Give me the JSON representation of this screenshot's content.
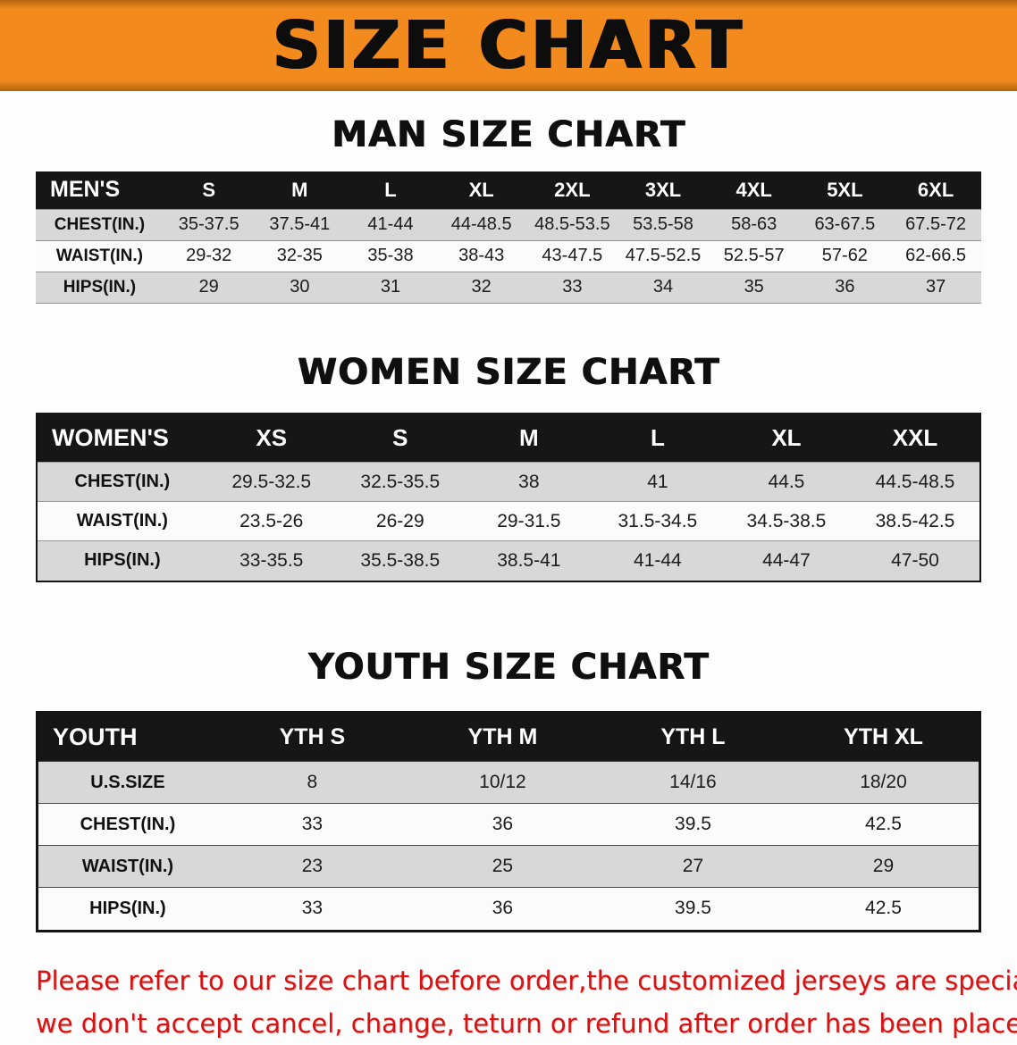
{
  "banner": {
    "title": "SIZE CHART"
  },
  "colors": {
    "banner_bg": "#f28a1e",
    "header_band": "#161616",
    "row_stripe": "#d8d8d8",
    "disclaimer_red": "#d61212"
  },
  "men": {
    "heading": "MAN SIZE CHART",
    "table": {
      "header": [
        "MEN'S",
        "S",
        "M",
        "L",
        "XL",
        "2XL",
        "3XL",
        "4XL",
        "5XL",
        "6XL"
      ],
      "rows": [
        {
          "label": "CHEST(IN.)",
          "values": [
            "35-37.5",
            "37.5-41",
            "41-44",
            "44-48.5",
            "48.5-53.5",
            "53.5-58",
            "58-63",
            "63-67.5",
            "67.5-72"
          ]
        },
        {
          "label": "WAIST(IN.)",
          "values": [
            "29-32",
            "32-35",
            "35-38",
            "38-43",
            "43-47.5",
            "47.5-52.5",
            "52.5-57",
            "57-62",
            "62-66.5"
          ]
        },
        {
          "label": "HIPS(IN.)",
          "values": [
            "29",
            "30",
            "31",
            "32",
            "33",
            "34",
            "35",
            "36",
            "37"
          ]
        }
      ]
    }
  },
  "women": {
    "heading": "WOMEN SIZE CHART",
    "table": {
      "header": [
        "WOMEN'S",
        "XS",
        "S",
        "M",
        "L",
        "XL",
        "XXL"
      ],
      "rows": [
        {
          "label": "CHEST(IN.)",
          "values": [
            "29.5-32.5",
            "32.5-35.5",
            "38",
            "41",
            "44.5",
            "44.5-48.5"
          ]
        },
        {
          "label": "WAIST(IN.)",
          "values": [
            "23.5-26",
            "26-29",
            "29-31.5",
            "31.5-34.5",
            "34.5-38.5",
            "38.5-42.5"
          ]
        },
        {
          "label": "HIPS(IN.)",
          "values": [
            "33-35.5",
            "35.5-38.5",
            "38.5-41",
            "41-44",
            "44-47",
            "47-50"
          ]
        }
      ]
    }
  },
  "youth": {
    "heading": "YOUTH SIZE CHART",
    "table": {
      "header": [
        "YOUTH",
        "YTH S",
        "YTH M",
        "YTH L",
        "YTH XL"
      ],
      "rows": [
        {
          "label": "U.S.SIZE",
          "values": [
            "8",
            "10/12",
            "14/16",
            "18/20"
          ]
        },
        {
          "label": "CHEST(IN.)",
          "values": [
            "33",
            "36",
            "39.5",
            "42.5"
          ]
        },
        {
          "label": "WAIST(IN.)",
          "values": [
            "23",
            "25",
            "27",
            "29"
          ]
        },
        {
          "label": "HIPS(IN.)",
          "values": [
            "33",
            "36",
            "39.5",
            "42.5"
          ]
        }
      ]
    }
  },
  "disclaimer": {
    "line1": "Please refer to our size chart before order,the customized jerseys are special products,",
    "line2": "we don't accept cancel, change, teturn or refund after order has been placed!"
  }
}
